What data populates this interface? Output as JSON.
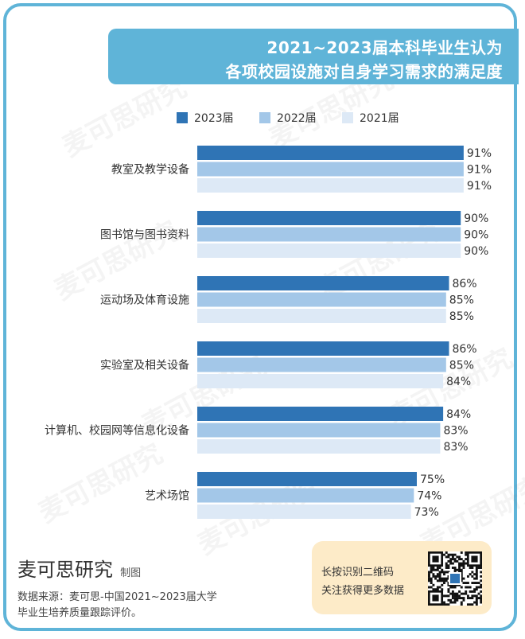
{
  "title": {
    "line1": "2021~2023届本科毕业生认为",
    "line2": "各项校园设施对自身学习需求的满足度"
  },
  "watermark": "麦可思研究",
  "colors": {
    "frame": "#5fb4d8",
    "title_bg": "#5fb4d8",
    "series_2023": "#2f74b5",
    "series_2022": "#a3c7e8",
    "series_2021": "#dde9f6",
    "qr_box": "#fdebc8"
  },
  "chart_data": {
    "type": "bar",
    "orientation": "horizontal",
    "title": "2021~2023届本科毕业生认为各项校园设施对自身学习需求的满足度",
    "categories": [
      "教室及教学设备",
      "图书馆与图书资料",
      "运动场及体育设施",
      "实验室及相关设备",
      "计算机、校园网等信息化设备",
      "艺术场馆"
    ],
    "series": [
      {
        "name": "2023届",
        "values": [
          91,
          90,
          86,
          86,
          84,
          75
        ],
        "labels": [
          "91%",
          "90%",
          "86%",
          "86%",
          "84%",
          "75%"
        ]
      },
      {
        "name": "2022届",
        "values": [
          91,
          90,
          85,
          85,
          83,
          74
        ],
        "labels": [
          "91%",
          "90%",
          "85%",
          "85%",
          "83%",
          "74%"
        ]
      },
      {
        "name": "2021届",
        "values": [
          91,
          90,
          85,
          84,
          83,
          73
        ],
        "labels": [
          "91%",
          "90%",
          "85%",
          "84%",
          "83%",
          "73%"
        ]
      }
    ],
    "unit": "%",
    "xlim": [
      0,
      100
    ],
    "legend": "top",
    "grid": false
  },
  "footer": {
    "brand": "麦可思研究",
    "brand_suffix": "制图",
    "source_line1": "数据来源：麦可思-中国2021~2023届大学",
    "source_line2": "毕业生培养质量跟踪评价。"
  },
  "qr": {
    "text1": "长按识别二维码",
    "text2": "关注获得更多数据"
  }
}
